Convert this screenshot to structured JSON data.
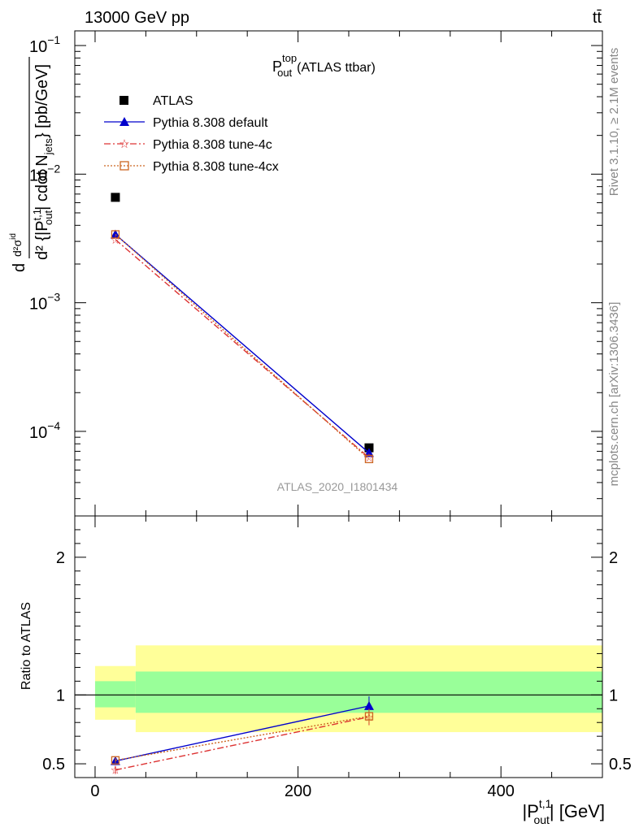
{
  "header": {
    "energy_label": "13000 GeV pp",
    "process_label": "tt̄"
  },
  "side_labels": {
    "rivet": "Rivet 3.1.10, ≥ 2.1M events",
    "mcplots": "mcplots.cern.ch [arXiv:1306.3436]"
  },
  "chart_data": [
    {
      "panel": "main",
      "type": "scatter",
      "title_main": "P",
      "title_sup": "top",
      "title_sub": "out",
      "title_suffix": "(ATLAS ttbar)",
      "watermark": "ATLAS_2020_I1801434",
      "ylabel": "d d²σ^{id} / d² {|P^{t,1}_{out}| cdot N_{jets}} [pb/GeV]",
      "yscale": "log",
      "ylim": [
        2.2e-05,
        0.13
      ],
      "xlim": [
        -20,
        500
      ],
      "y_ticks": [
        {
          "v": 0.1,
          "base": "10",
          "exp": "−1"
        },
        {
          "v": 0.01,
          "base": "10",
          "exp": "−2"
        },
        {
          "v": 0.001,
          "base": "10",
          "exp": "−3"
        },
        {
          "v": 0.0001,
          "base": "10",
          "exp": "−4"
        }
      ],
      "legend_position": "top-left",
      "series": [
        {
          "name": "ATLAS",
          "color": "#000000",
          "marker": "square",
          "x": [
            20,
            270
          ],
          "y": [
            0.0066,
            7.45e-05
          ]
        },
        {
          "name": "Pythia 8.308 default",
          "color": "#0000cc",
          "marker": "triangle",
          "line": "solid",
          "x": [
            20,
            270
          ],
          "y": [
            0.0034,
            6.8e-05
          ]
        },
        {
          "name": "Pythia 8.308 tune-4c",
          "color": "#dd3333",
          "marker": "star",
          "line": "dashdot",
          "x": [
            20,
            270
          ],
          "y": [
            0.0031,
            6.25e-05
          ]
        },
        {
          "name": "Pythia 8.308 tune-4cx",
          "color": "#cc6622",
          "marker": "open-square",
          "line": "dotted",
          "x": [
            20,
            270
          ],
          "y": [
            0.0034,
            6.1e-05
          ]
        }
      ]
    },
    {
      "panel": "ratio",
      "type": "line",
      "ylabel": "Ratio to ATLAS",
      "xlabel_main": "|P",
      "xlabel_sup": "t,1",
      "xlabel_sub": "out",
      "xlabel_suffix": "| [GeV]",
      "xlim": [
        -20,
        500
      ],
      "ylim": [
        0.4,
        2.3
      ],
      "x_ticks": [
        0,
        200,
        400
      ],
      "y_ticks": [
        0.5,
        1,
        2
      ],
      "bands": [
        {
          "x": [
            0,
            40
          ],
          "green": [
            0.91,
            1.1
          ],
          "yellow": [
            0.82,
            1.21
          ]
        },
        {
          "x": [
            40,
            500
          ],
          "green": [
            0.87,
            1.17
          ],
          "yellow": [
            0.73,
            1.36
          ]
        }
      ],
      "series": [
        {
          "name": "Pythia 8.308 default",
          "color": "#0000cc",
          "x": [
            20,
            270
          ],
          "y": [
            0.52,
            0.92
          ],
          "err": [
            0.02,
            0.07
          ]
        },
        {
          "name": "Pythia 8.308 tune-4c",
          "color": "#dd3333",
          "x": [
            20,
            270
          ],
          "y": [
            0.455,
            0.84
          ],
          "err": [
            0.03,
            0.06
          ]
        },
        {
          "name": "Pythia 8.308 tune-4cx",
          "color": "#cc6622",
          "x": [
            20,
            270
          ],
          "y": [
            0.525,
            0.845
          ],
          "err": [
            0.02,
            0.05
          ]
        }
      ]
    }
  ]
}
